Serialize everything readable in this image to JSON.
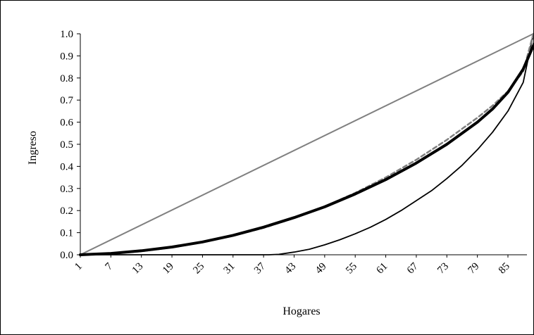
{
  "chart_data": {
    "type": "line",
    "xlabel": "Hogares",
    "ylabel": "Ingreso",
    "x_tick_labels": [
      "1",
      "7",
      "13",
      "19",
      "25",
      "31",
      "37",
      "43",
      "49",
      "55",
      "61",
      "67",
      "73",
      "79",
      "85"
    ],
    "y_tick_labels": [
      "0.0",
      "0.1",
      "0.2",
      "0.3",
      "0.4",
      "0.5",
      "0.6",
      "0.7",
      "0.8",
      "0.9",
      "1.0"
    ],
    "xlim": [
      1,
      91
    ],
    "ylim": [
      0,
      1
    ],
    "grid": false,
    "legend": "none",
    "series": [
      {
        "color": "#808080",
        "style": "solid",
        "x": [
          1,
          90
        ],
        "y": [
          0.0,
          1.0
        ]
      },
      {
        "color": "#000000",
        "style": "solid-thin",
        "x": [
          1,
          10,
          20,
          30,
          38,
          40,
          43,
          46,
          49,
          52,
          55,
          58,
          61,
          64,
          67,
          70,
          73,
          76,
          79,
          82,
          85,
          88,
          90
        ],
        "y": [
          0.0,
          0.0,
          0.0,
          0.0,
          0.0,
          0.002,
          0.012,
          0.025,
          0.045,
          0.068,
          0.095,
          0.125,
          0.16,
          0.2,
          0.245,
          0.29,
          0.345,
          0.405,
          0.475,
          0.555,
          0.65,
          0.78,
          1.0
        ]
      },
      {
        "color": "#808080",
        "style": "dashed",
        "x": [
          1,
          7,
          13,
          19,
          25,
          31,
          37,
          43,
          49,
          55,
          61,
          67,
          73,
          79,
          82,
          85,
          88,
          90
        ],
        "y": [
          0.0,
          0.005,
          0.016,
          0.033,
          0.056,
          0.086,
          0.122,
          0.166,
          0.218,
          0.28,
          0.35,
          0.43,
          0.52,
          0.62,
          0.675,
          0.74,
          0.83,
          1.0
        ]
      },
      {
        "color": "#000000",
        "style": "solid-thick",
        "x": [
          1,
          7,
          13,
          19,
          25,
          31,
          37,
          43,
          49,
          55,
          61,
          67,
          73,
          79,
          82,
          85,
          88,
          91
        ],
        "y": [
          0.0,
          0.006,
          0.018,
          0.035,
          0.058,
          0.088,
          0.125,
          0.168,
          0.217,
          0.275,
          0.34,
          0.415,
          0.5,
          0.6,
          0.66,
          0.735,
          0.84,
          1.0
        ]
      }
    ]
  }
}
